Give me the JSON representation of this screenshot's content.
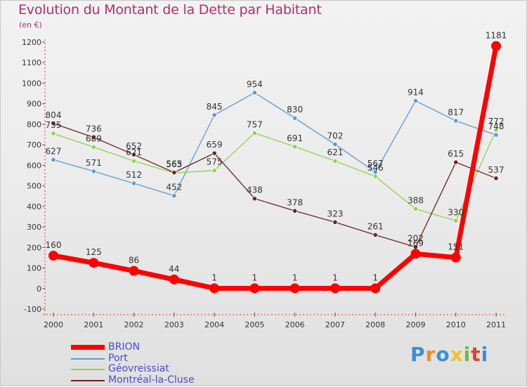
{
  "header": {
    "title": "Evolution du Montant de la Dette par Habitant",
    "unit": "(en €)"
  },
  "brand": {
    "text": "Proxiti",
    "colors": [
      "#3a8fd8",
      "#f28c28",
      "#3a8fd8",
      "#f2c22b",
      "#7ab83c",
      "#d8443a",
      "#3a8fd8"
    ]
  },
  "chart_data": {
    "type": "line",
    "title": "Evolution du Montant de la Dette par Habitant",
    "ylabel": "(en €)",
    "xlabel": "",
    "x": [
      "2000",
      "2001",
      "2002",
      "2003",
      "2004",
      "2005",
      "2006",
      "2007",
      "2008",
      "2009",
      "2010",
      "2011"
    ],
    "ylim": [
      -100,
      1200
    ],
    "yticks": [
      -100,
      0,
      100,
      200,
      300,
      400,
      500,
      600,
      700,
      800,
      900,
      1000,
      1100,
      1200
    ],
    "grid": false,
    "legend_position": "bottom-left",
    "series": [
      {
        "name": "BRION",
        "color": "#ff0000",
        "width": 7,
        "marker": 7,
        "values": [
          160,
          125,
          86,
          44,
          1,
          1,
          1,
          1,
          1,
          169,
          151,
          1181
        ]
      },
      {
        "name": "Port",
        "color": "#5b9bd5",
        "width": 1.3,
        "marker": 3.2,
        "values": [
          627,
          571,
          512,
          452,
          845,
          954,
          830,
          702,
          567,
          914,
          817,
          748
        ]
      },
      {
        "name": "Géovreissiat",
        "color": "#92d050",
        "width": 1.3,
        "marker": 3.2,
        "values": [
          755,
          689,
          621,
          563,
          575,
          757,
          691,
          621,
          546,
          388,
          330,
          772
        ]
      },
      {
        "name": "Montréal-la-Cluse",
        "color": "#6b2424",
        "width": 1.3,
        "marker": 3.2,
        "values": [
          804,
          736,
          652,
          565,
          659,
          438,
          378,
          323,
          261,
          202,
          615,
          537
        ]
      }
    ]
  }
}
